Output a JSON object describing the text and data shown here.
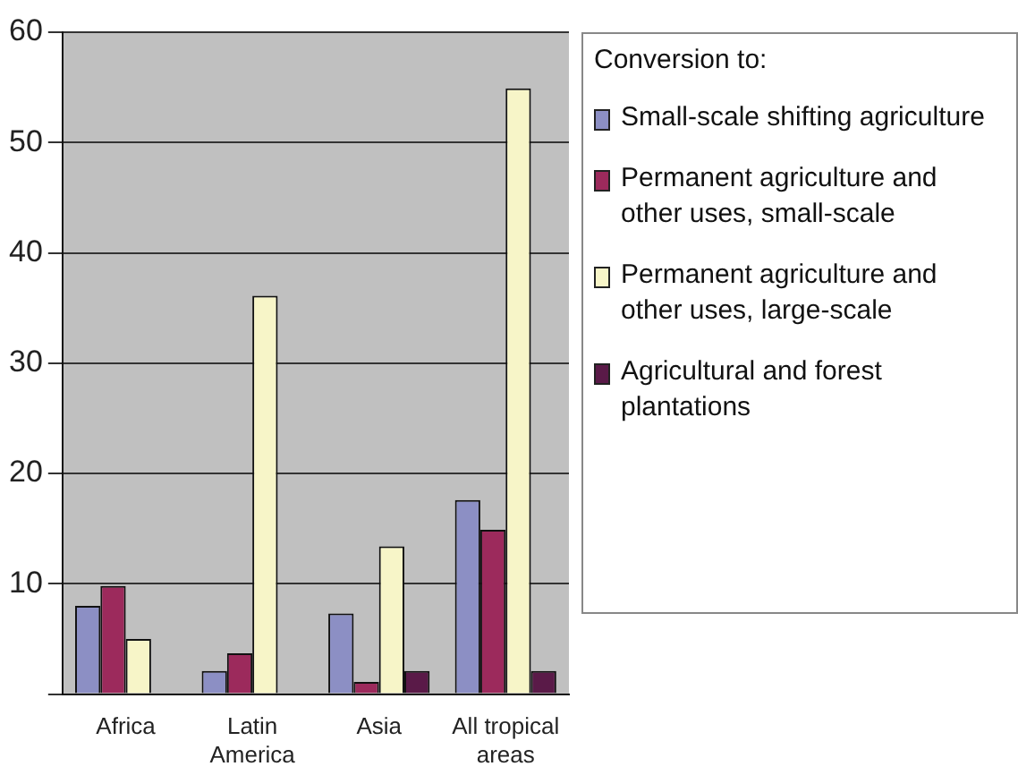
{
  "chart_data": {
    "type": "bar",
    "categories": [
      "Africa",
      "Latin America",
      "Asia",
      "All tropical areas"
    ],
    "legend_title": "Conversion to:",
    "series": [
      {
        "name": "Small-scale shifting agriculture",
        "color": "#8c8fc4",
        "values": [
          8,
          2.1,
          7.3,
          17.6
        ]
      },
      {
        "name": "Permanent agriculture and other uses, small-scale",
        "color": "#9c2a5c",
        "values": [
          9.8,
          3.7,
          1.1,
          14.9
        ]
      },
      {
        "name": "Permanent agriculture and other uses, large-scale",
        "color": "#f7f5c8",
        "values": [
          5,
          36.1,
          13.4,
          54.9
        ]
      },
      {
        "name": "Agricultural and forest plantations",
        "color": "#5a1a48",
        "values": [
          0,
          0,
          2.1,
          2.1
        ]
      }
    ],
    "ylim": [
      0,
      60
    ],
    "yticks": [
      {
        "value": 0,
        "label": null
      },
      10,
      20,
      30,
      40,
      50,
      60
    ],
    "grid": "y",
    "legend": "right"
  }
}
